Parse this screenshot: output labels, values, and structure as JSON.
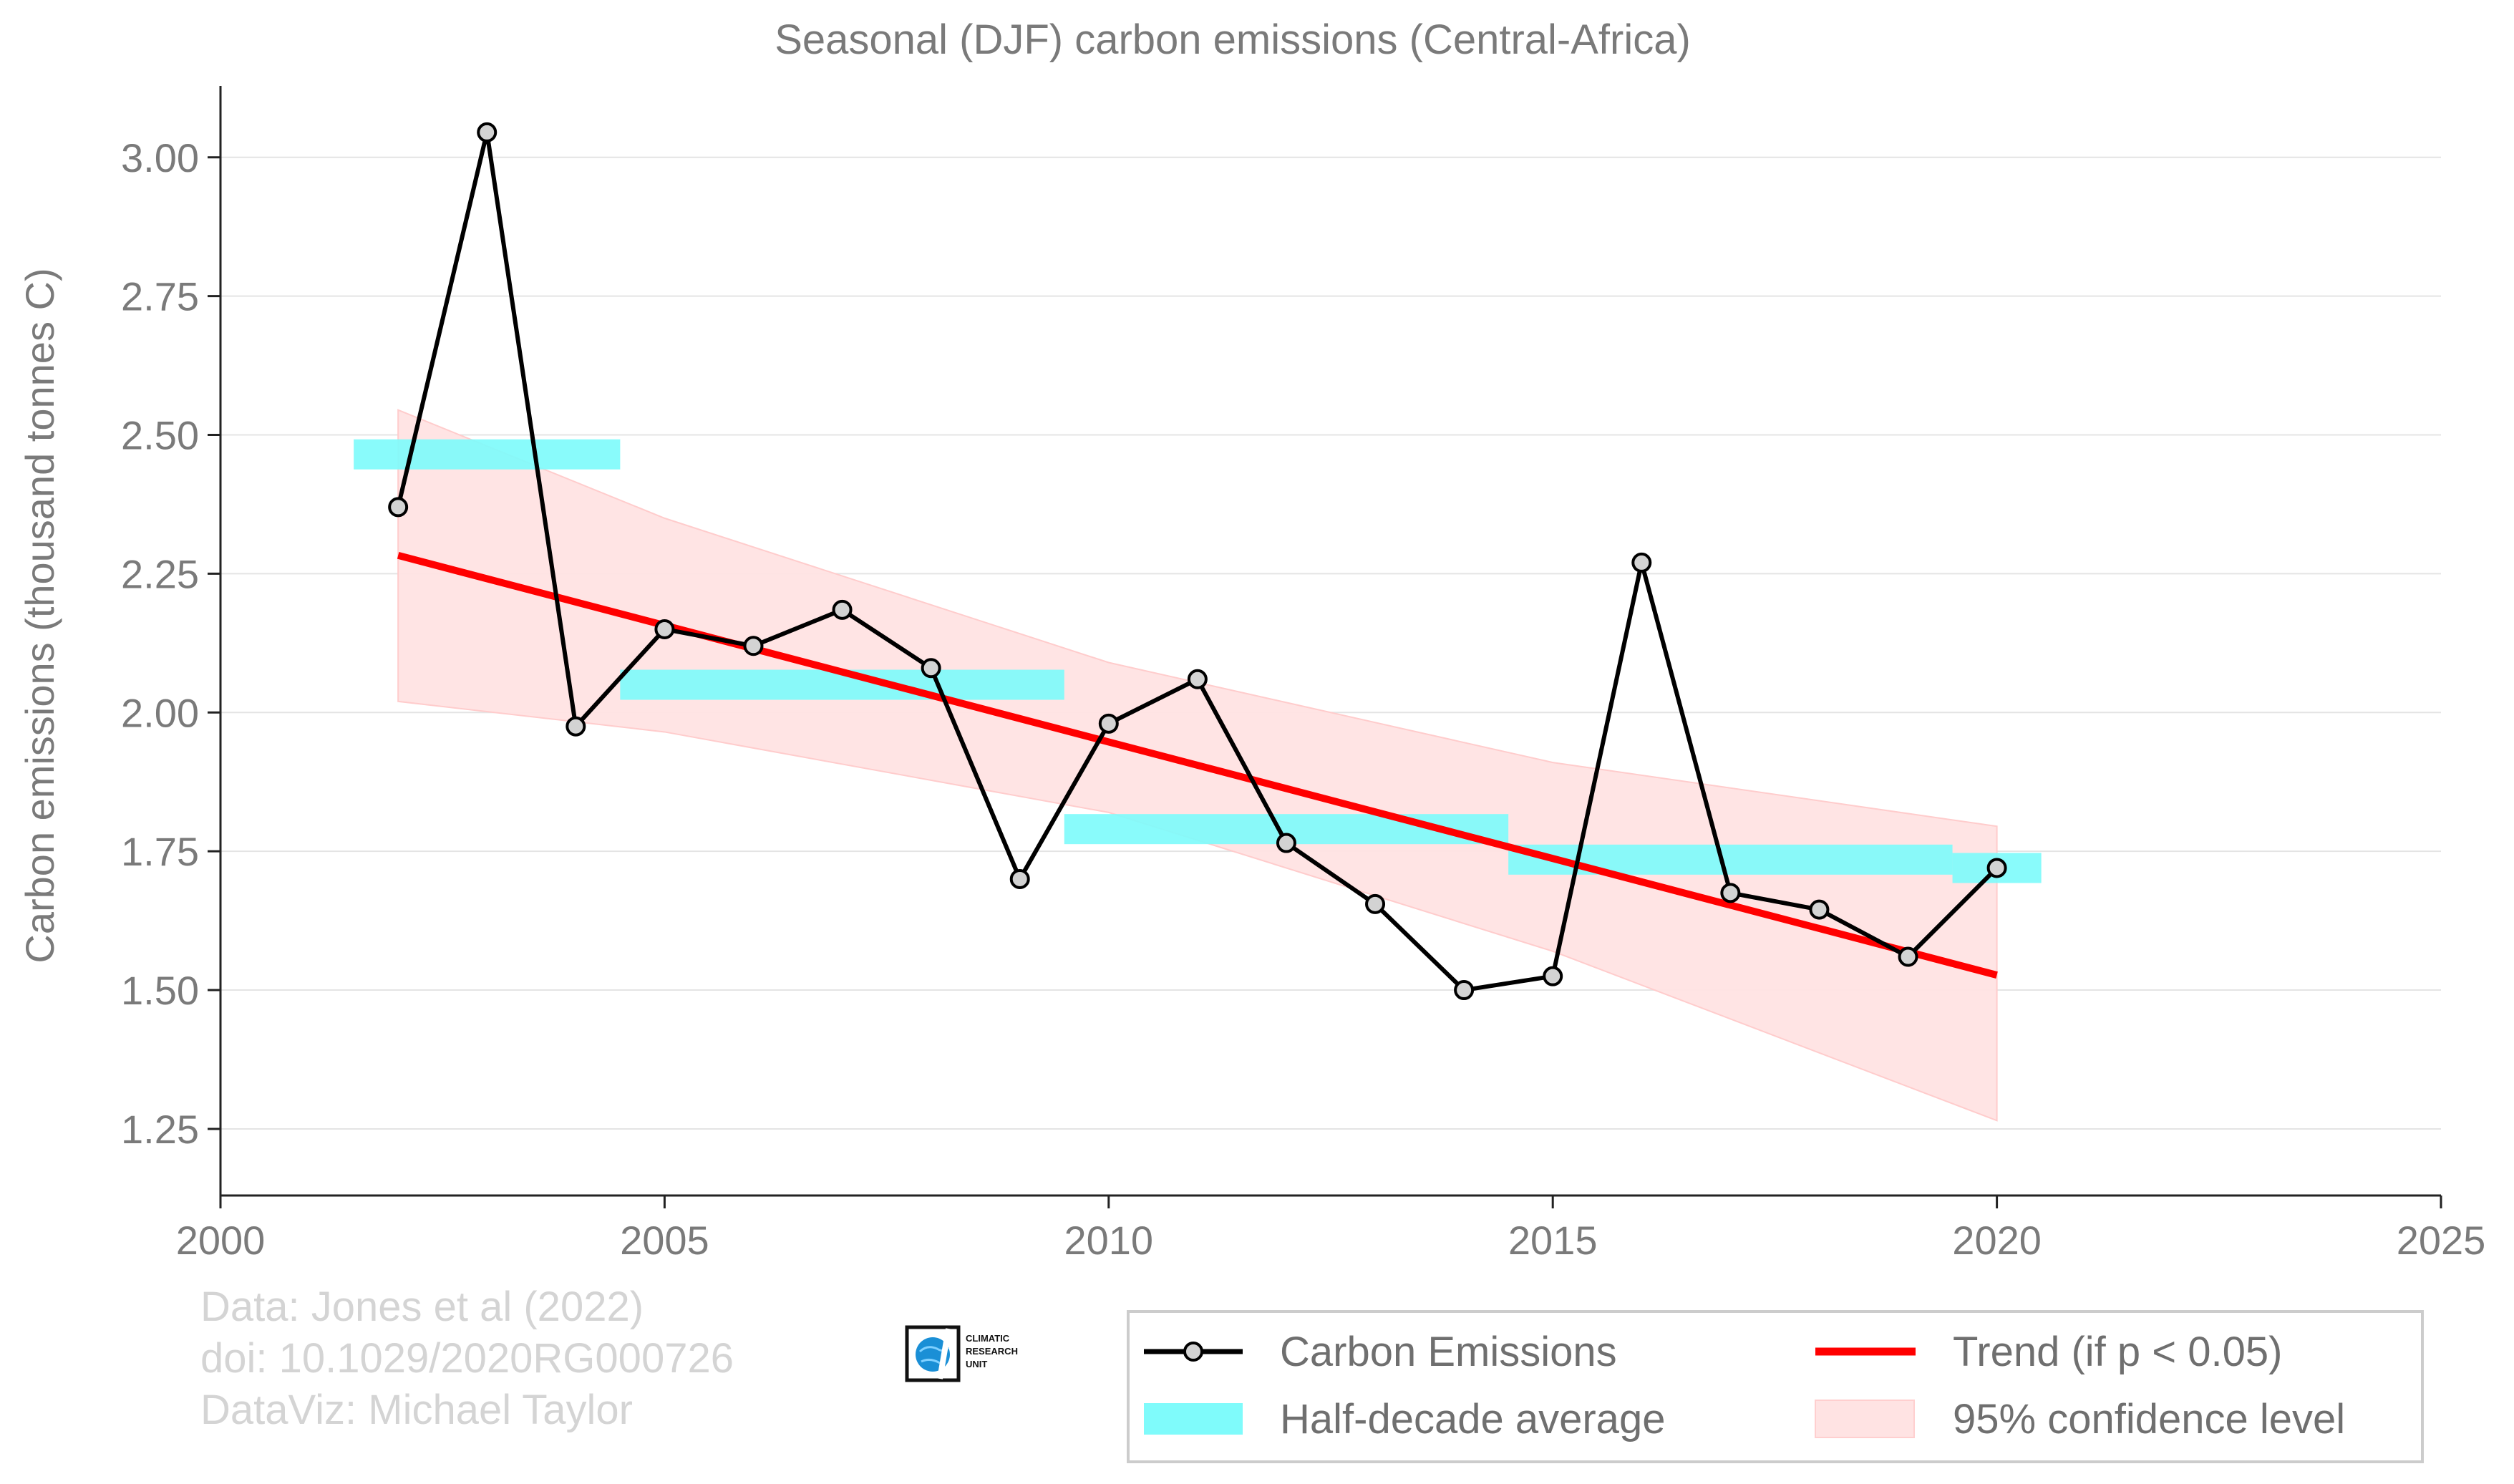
{
  "chart_data": {
    "type": "line",
    "title": "Seasonal (DJF) carbon emissions (Central-Africa)",
    "ylabel": "Carbon emissions (thousand tonnes C)",
    "xlabel": "",
    "xlim": [
      2000,
      2025
    ],
    "ylim": [
      1.13,
      3.09
    ],
    "xticks": [
      2000,
      2005,
      2010,
      2015,
      2020,
      2025
    ],
    "xtick_labels": [
      "2000",
      "2005",
      "2010",
      "2015",
      "2020",
      "2025"
    ],
    "yticks": [
      1.25,
      1.5,
      1.75,
      2.0,
      2.25,
      2.5,
      2.75,
      3.0
    ],
    "ytick_labels": [
      "1.25",
      "1.50",
      "1.75",
      "2.00",
      "2.25",
      "2.50",
      "2.75",
      "3.00"
    ],
    "grid": "horizontal",
    "legend_position": "bottom-right",
    "series": [
      {
        "name": "Carbon Emissions",
        "kind": "line-markers",
        "color": "#000000",
        "marker_fill": "#d3d3d3",
        "x": [
          2002,
          2003,
          2004,
          2005,
          2006,
          2007,
          2008,
          2009,
          2010,
          2011,
          2012,
          2013,
          2014,
          2015,
          2016,
          2017,
          2018,
          2019,
          2020
        ],
        "y": [
          2.37,
          3.045,
          1.975,
          2.15,
          2.12,
          2.185,
          2.08,
          1.7,
          1.98,
          2.06,
          1.765,
          1.655,
          1.5,
          1.525,
          2.27,
          1.675,
          1.645,
          1.56,
          1.72
        ]
      },
      {
        "name": "Trend (if p < 0.05)",
        "kind": "line",
        "color": "#ff0000",
        "x": [
          2002,
          2020
        ],
        "y": [
          2.283,
          1.527
        ]
      },
      {
        "name": "Half-decade average",
        "kind": "bars",
        "color": "#7ffbfb",
        "segments": [
          {
            "x0": 2001.5,
            "x1": 2004.5,
            "y": 2.465
          },
          {
            "x0": 2004.5,
            "x1": 2009.5,
            "y": 2.05
          },
          {
            "x0": 2009.5,
            "x1": 2014.5,
            "y": 1.79
          },
          {
            "x0": 2014.5,
            "x1": 2019.5,
            "y": 1.735
          },
          {
            "x0": 2019.5,
            "x1": 2020.5,
            "y": 1.72
          }
        ]
      },
      {
        "name": "95% confidence level",
        "kind": "band",
        "color": "#ffe3e3",
        "x": [
          2002,
          2005,
          2010,
          2015,
          2020
        ],
        "upper": [
          2.545,
          2.35,
          2.09,
          1.91,
          1.795
        ],
        "lower": [
          2.02,
          1.965,
          1.82,
          1.57,
          1.265
        ]
      }
    ]
  },
  "credits": {
    "line1": "Data: Jones et al (2022)",
    "line2": "doi: 10.1029/2020RG000726",
    "line3": "DataViz: Michael Taylor"
  },
  "logo": {
    "line1": "CLIMATIC",
    "line2": "RESEARCH",
    "line3": "UNIT"
  }
}
